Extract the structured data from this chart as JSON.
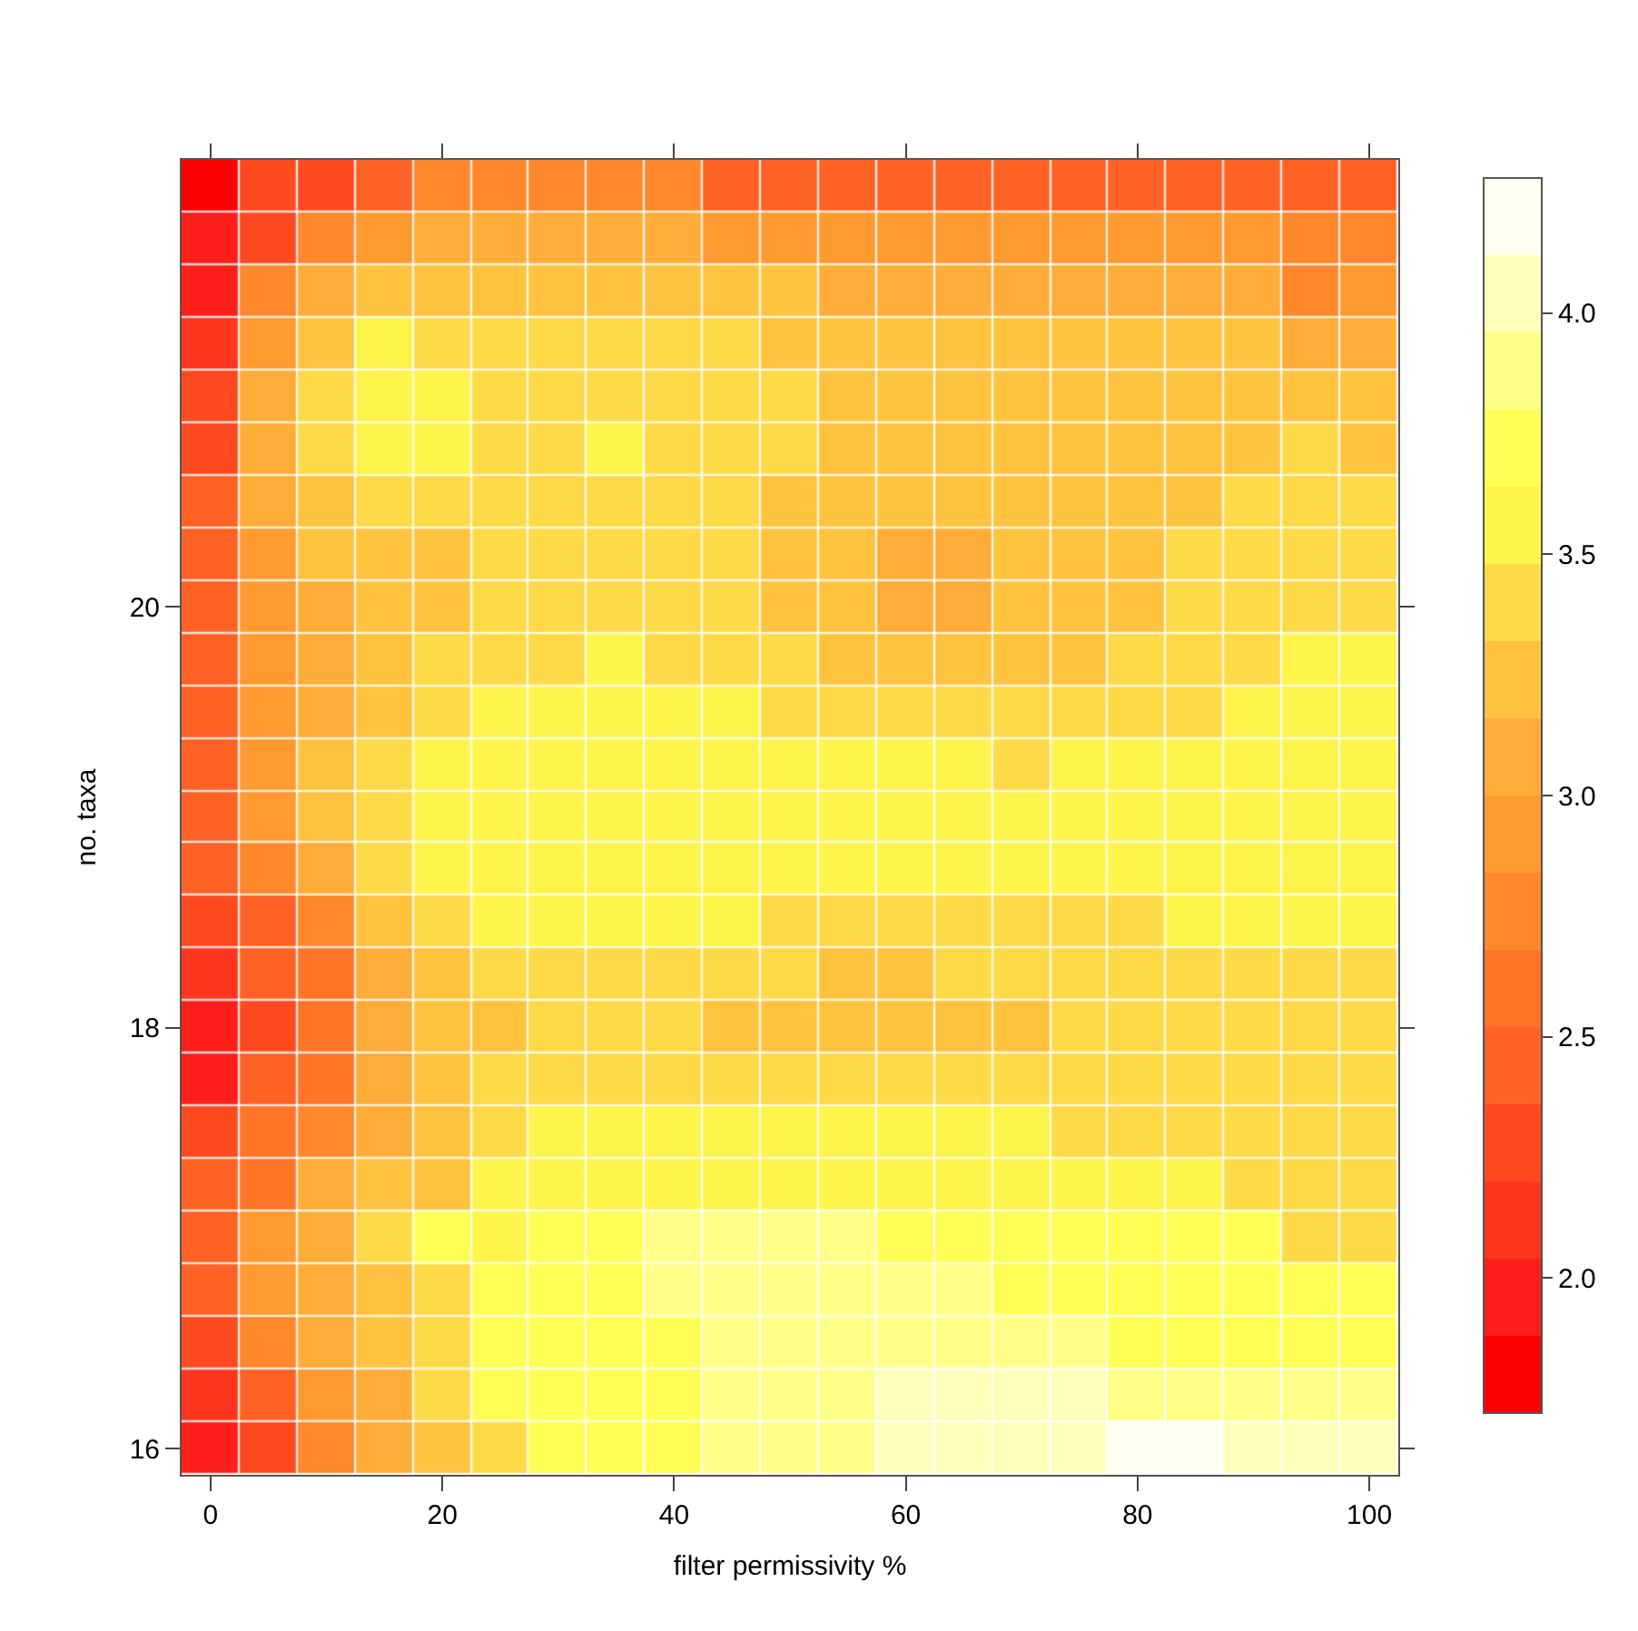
{
  "chart_data": {
    "type": "heatmap",
    "xlabel": "filter permissivity %",
    "ylabel": "no. taxa",
    "categories": [
      "0",
      null,
      null,
      null,
      "20",
      null,
      null,
      null,
      "40",
      null,
      null,
      null,
      "60",
      null,
      null,
      null,
      "80",
      null,
      null,
      null,
      "100"
    ],
    "y_categories": [
      null,
      null,
      null,
      null,
      null,
      null,
      null,
      null,
      "20",
      null,
      null,
      null,
      null,
      null,
      null,
      null,
      "18",
      null,
      null,
      null,
      null,
      null,
      null,
      null,
      "16"
    ],
    "cells": [
      [
        1.8,
        2.28,
        2.28,
        2.44,
        2.76,
        2.76,
        2.76,
        2.76,
        2.76,
        2.44,
        2.44,
        2.44,
        2.44,
        2.44,
        2.44,
        2.44,
        2.44,
        2.44,
        2.44,
        2.44,
        2.44
      ],
      [
        1.96,
        2.28,
        2.76,
        2.92,
        3.08,
        3.08,
        3.08,
        3.08,
        3.08,
        2.92,
        2.92,
        2.92,
        2.92,
        2.92,
        2.92,
        2.92,
        2.92,
        2.92,
        2.92,
        2.76,
        2.76
      ],
      [
        1.96,
        2.76,
        3.08,
        3.24,
        3.24,
        3.24,
        3.24,
        3.24,
        3.24,
        3.24,
        3.24,
        3.08,
        3.08,
        3.08,
        3.08,
        3.08,
        3.08,
        3.08,
        3.08,
        2.76,
        2.92
      ],
      [
        2.12,
        2.92,
        3.24,
        3.56,
        3.4,
        3.4,
        3.4,
        3.4,
        3.4,
        3.4,
        3.24,
        3.24,
        3.24,
        3.24,
        3.24,
        3.24,
        3.24,
        3.24,
        3.24,
        3.08,
        3.08
      ],
      [
        2.28,
        3.08,
        3.4,
        3.56,
        3.56,
        3.4,
        3.4,
        3.4,
        3.4,
        3.4,
        3.4,
        3.24,
        3.24,
        3.24,
        3.24,
        3.24,
        3.24,
        3.24,
        3.24,
        3.24,
        3.24
      ],
      [
        2.28,
        3.08,
        3.4,
        3.56,
        3.56,
        3.4,
        3.4,
        3.56,
        3.4,
        3.4,
        3.4,
        3.24,
        3.24,
        3.24,
        3.24,
        3.24,
        3.24,
        3.24,
        3.24,
        3.4,
        3.24
      ],
      [
        2.44,
        3.08,
        3.24,
        3.4,
        3.4,
        3.4,
        3.4,
        3.4,
        3.4,
        3.4,
        3.24,
        3.24,
        3.24,
        3.24,
        3.24,
        3.24,
        3.24,
        3.24,
        3.4,
        3.4,
        3.4
      ],
      [
        2.44,
        2.92,
        3.24,
        3.24,
        3.24,
        3.4,
        3.4,
        3.4,
        3.4,
        3.4,
        3.24,
        3.24,
        3.08,
        3.08,
        3.24,
        3.24,
        3.24,
        3.4,
        3.4,
        3.4,
        3.4
      ],
      [
        2.44,
        2.92,
        3.08,
        3.24,
        3.24,
        3.4,
        3.4,
        3.4,
        3.4,
        3.4,
        3.24,
        3.24,
        3.08,
        3.08,
        3.24,
        3.24,
        3.24,
        3.4,
        3.4,
        3.4,
        3.4
      ],
      [
        2.44,
        2.92,
        3.08,
        3.24,
        3.4,
        3.4,
        3.4,
        3.56,
        3.4,
        3.4,
        3.4,
        3.24,
        3.24,
        3.24,
        3.24,
        3.24,
        3.4,
        3.4,
        3.4,
        3.56,
        3.56
      ],
      [
        2.44,
        2.92,
        3.08,
        3.24,
        3.4,
        3.56,
        3.56,
        3.56,
        3.56,
        3.56,
        3.4,
        3.4,
        3.4,
        3.4,
        3.4,
        3.4,
        3.4,
        3.4,
        3.56,
        3.56,
        3.56
      ],
      [
        2.44,
        2.92,
        3.24,
        3.4,
        3.56,
        3.56,
        3.56,
        3.56,
        3.56,
        3.56,
        3.56,
        3.56,
        3.56,
        3.56,
        3.4,
        3.56,
        3.56,
        3.56,
        3.56,
        3.56,
        3.56
      ],
      [
        2.44,
        2.92,
        3.24,
        3.4,
        3.56,
        3.56,
        3.56,
        3.56,
        3.56,
        3.56,
        3.56,
        3.56,
        3.56,
        3.56,
        3.56,
        3.56,
        3.56,
        3.56,
        3.56,
        3.56,
        3.56
      ],
      [
        2.44,
        2.76,
        3.08,
        3.4,
        3.56,
        3.56,
        3.56,
        3.56,
        3.56,
        3.56,
        3.56,
        3.56,
        3.56,
        3.56,
        3.56,
        3.56,
        3.56,
        3.56,
        3.56,
        3.56,
        3.56
      ],
      [
        2.28,
        2.44,
        2.76,
        3.24,
        3.4,
        3.56,
        3.56,
        3.56,
        3.56,
        3.56,
        3.4,
        3.4,
        3.4,
        3.4,
        3.4,
        3.4,
        3.4,
        3.56,
        3.56,
        3.56,
        3.56
      ],
      [
        2.12,
        2.44,
        2.6,
        3.08,
        3.24,
        3.4,
        3.4,
        3.4,
        3.4,
        3.4,
        3.4,
        3.24,
        3.24,
        3.4,
        3.4,
        3.4,
        3.4,
        3.4,
        3.4,
        3.4,
        3.4
      ],
      [
        1.96,
        2.28,
        2.6,
        3.08,
        3.24,
        3.24,
        3.4,
        3.4,
        3.4,
        3.24,
        3.24,
        3.24,
        3.24,
        3.24,
        3.24,
        3.4,
        3.4,
        3.4,
        3.4,
        3.4,
        3.4
      ],
      [
        1.96,
        2.44,
        2.6,
        3.08,
        3.24,
        3.4,
        3.4,
        3.4,
        3.4,
        3.4,
        3.4,
        3.4,
        3.4,
        3.4,
        3.4,
        3.4,
        3.4,
        3.4,
        3.4,
        3.4,
        3.4
      ],
      [
        2.28,
        2.6,
        2.76,
        3.08,
        3.24,
        3.4,
        3.56,
        3.56,
        3.56,
        3.56,
        3.56,
        3.56,
        3.56,
        3.56,
        3.56,
        3.4,
        3.4,
        3.4,
        3.4,
        3.4,
        3.4
      ],
      [
        2.44,
        2.6,
        3.08,
        3.24,
        3.24,
        3.56,
        3.56,
        3.56,
        3.56,
        3.56,
        3.56,
        3.56,
        3.56,
        3.56,
        3.56,
        3.56,
        3.56,
        3.56,
        3.4,
        3.4,
        3.4
      ],
      [
        2.44,
        2.92,
        3.08,
        3.4,
        3.72,
        3.56,
        3.72,
        3.72,
        3.88,
        3.88,
        3.88,
        3.88,
        3.72,
        3.72,
        3.72,
        3.72,
        3.72,
        3.72,
        3.72,
        3.4,
        3.4
      ],
      [
        2.44,
        2.92,
        3.08,
        3.24,
        3.4,
        3.72,
        3.72,
        3.72,
        3.88,
        3.88,
        3.88,
        3.88,
        3.88,
        3.88,
        3.72,
        3.72,
        3.72,
        3.72,
        3.72,
        3.72,
        3.72
      ],
      [
        2.28,
        2.76,
        3.08,
        3.24,
        3.4,
        3.72,
        3.72,
        3.72,
        3.72,
        3.88,
        3.88,
        3.88,
        3.88,
        3.88,
        3.88,
        3.88,
        3.72,
        3.72,
        3.72,
        3.72,
        3.72
      ],
      [
        2.12,
        2.44,
        2.92,
        3.08,
        3.4,
        3.72,
        3.72,
        3.72,
        3.72,
        3.88,
        3.88,
        3.88,
        4.04,
        4.04,
        4.04,
        4.04,
        3.88,
        3.88,
        3.88,
        3.88,
        3.88
      ],
      [
        1.96,
        2.28,
        2.76,
        3.08,
        3.24,
        3.4,
        3.72,
        3.72,
        3.72,
        3.88,
        3.88,
        3.88,
        4.04,
        4.04,
        4.04,
        4.04,
        4.2,
        4.2,
        4.04,
        4.04,
        4.04
      ]
    ],
    "clim": [
      1.72,
      4.28
    ],
    "cticks": [
      {
        "value": 2,
        "label": "2.0"
      },
      {
        "value": 2.5,
        "label": "2.5"
      },
      {
        "value": 3,
        "label": "3.0"
      },
      {
        "value": 3.5,
        "label": "3.5"
      },
      {
        "value": 4,
        "label": "4.0"
      }
    ],
    "grid": false
  }
}
